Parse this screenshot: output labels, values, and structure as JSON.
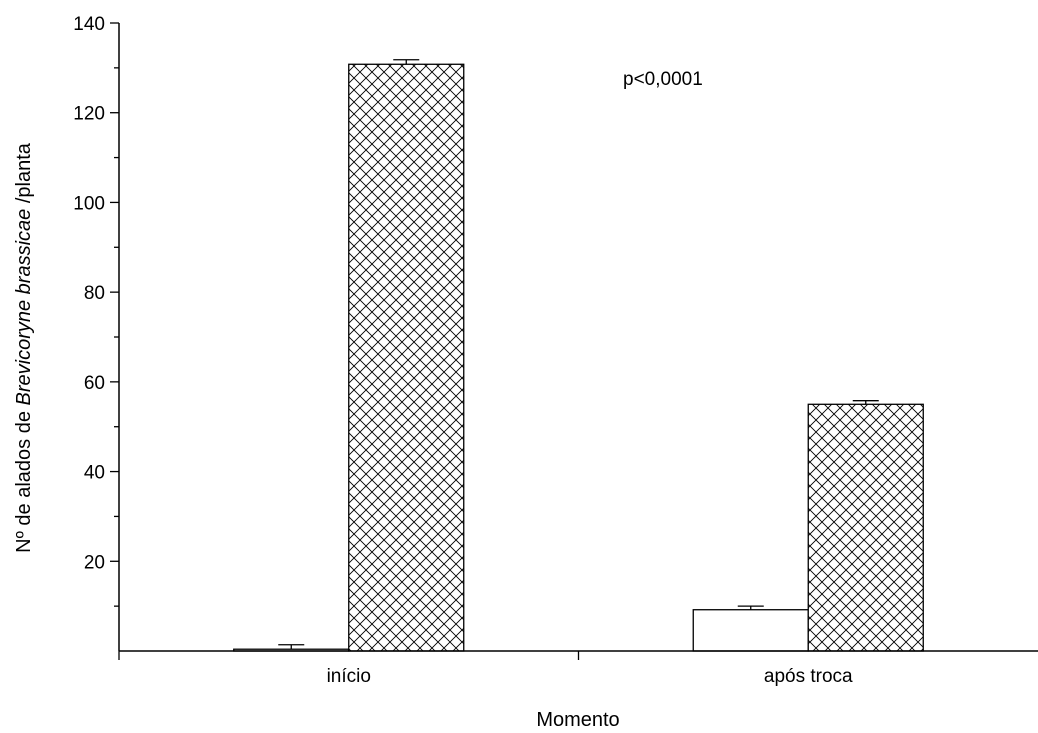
{
  "chart_data": {
    "type": "bar",
    "categories": [
      "início",
      "após troca"
    ],
    "series": [
      {
        "fill": "white",
        "values": [
          0.4,
          9.2
        ],
        "errors": [
          1.0,
          0.8
        ]
      },
      {
        "fill": "crosshatch",
        "values": [
          130.8,
          55.0
        ],
        "errors": [
          1.0,
          0.8
        ]
      }
    ],
    "xlabel": "Momento",
    "ylabel_prefix": "Nº de alados de ",
    "ylabel_italic": "Brevicoryne brassicae",
    "ylabel_suffix": " /planta",
    "ylim": [
      0,
      140
    ],
    "yticks": [
      20,
      40,
      60,
      80,
      100,
      120,
      140
    ],
    "annotation": "p<0,0001",
    "grid": false,
    "legend": "none",
    "colors": {
      "stroke": "#000000",
      "white_fill": "#ffffff",
      "hatch": "#000000"
    }
  }
}
